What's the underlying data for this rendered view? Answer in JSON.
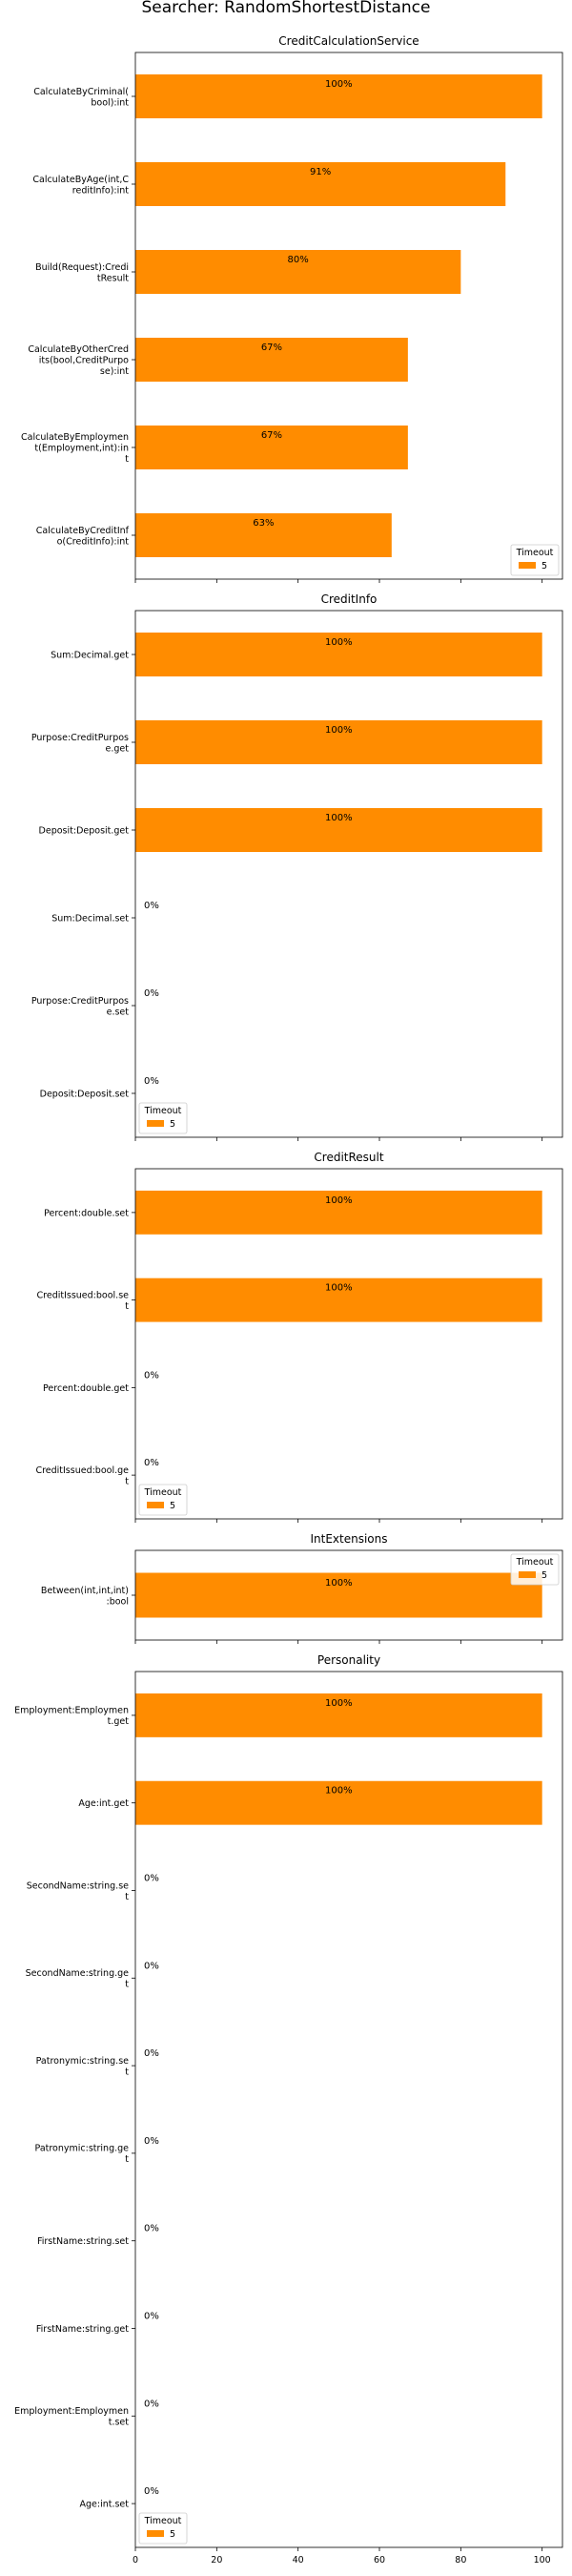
{
  "page_title": "Searcher: RandomShortestDistance",
  "colors": {
    "bar": "#ff8c00",
    "axis": "#000000",
    "background": "#ffffff"
  },
  "chart_data": [
    {
      "type": "bar",
      "orientation": "horizontal",
      "title": "CreditCalculationService",
      "categories": [
        "CalculateByCriminal(bool):int",
        "CalculateByAge(int,CreditInfo):int",
        "Build(Request):CreditResult",
        "CalculateByOtherCredits(bool,CreditPurpose):int",
        "CalculateByEmployment(Employment,int):int",
        "CalculateByCreditInfo(CreditInfo):int"
      ],
      "label_lines": [
        [
          "CalculateByCriminal(",
          "bool):int"
        ],
        [
          "CalculateByAge(int,C",
          "reditInfo):int"
        ],
        [
          "Build(Request):Credi",
          "tResult"
        ],
        [
          "CalculateByOtherCred",
          "its(bool,CreditPurpo",
          "se):int"
        ],
        [
          "CalculateByEmploymen",
          "t(Employment,int):in",
          "t"
        ],
        [
          "CalculateByCreditInf",
          "o(CreditInfo):int"
        ]
      ],
      "series": [
        {
          "name": "5",
          "values": [
            100,
            91,
            80,
            67,
            67,
            63
          ]
        }
      ],
      "value_labels": [
        "100%",
        "91%",
        "80%",
        "67%",
        "67%",
        "63%"
      ],
      "xlim": [
        0,
        105
      ],
      "legend": {
        "title": "Timeout",
        "entries": [
          "5"
        ],
        "position": "lower-right"
      }
    },
    {
      "type": "bar",
      "orientation": "horizontal",
      "title": "CreditInfo",
      "categories": [
        "Sum:Decimal.get",
        "Purpose:CreditPurpose.get",
        "Deposit:Deposit.get",
        "Sum:Decimal.set",
        "Purpose:CreditPurpose.set",
        "Deposit:Deposit.set"
      ],
      "label_lines": [
        [
          "Sum:Decimal.get"
        ],
        [
          "Purpose:CreditPurpos",
          "e.get"
        ],
        [
          "Deposit:Deposit.get"
        ],
        [
          "Sum:Decimal.set"
        ],
        [
          "Purpose:CreditPurpos",
          "e.set"
        ],
        [
          "Deposit:Deposit.set"
        ]
      ],
      "series": [
        {
          "name": "5",
          "values": [
            100,
            100,
            100,
            0,
            0,
            0
          ]
        }
      ],
      "value_labels": [
        "100%",
        "100%",
        "100%",
        "0%",
        "0%",
        "0%"
      ],
      "xlim": [
        0,
        105
      ],
      "legend": {
        "title": "Timeout",
        "entries": [
          "5"
        ],
        "position": "lower-left"
      }
    },
    {
      "type": "bar",
      "orientation": "horizontal",
      "title": "CreditResult",
      "categories": [
        "Percent:double.set",
        "CreditIssued:bool.set",
        "Percent:double.get",
        "CreditIssued:bool.get"
      ],
      "label_lines": [
        [
          "Percent:double.set"
        ],
        [
          "CreditIssued:bool.se",
          "t"
        ],
        [
          "Percent:double.get"
        ],
        [
          "CreditIssued:bool.ge",
          "t"
        ]
      ],
      "series": [
        {
          "name": "5",
          "values": [
            100,
            100,
            0,
            0
          ]
        }
      ],
      "value_labels": [
        "100%",
        "100%",
        "0%",
        "0%"
      ],
      "xlim": [
        0,
        105
      ],
      "legend": {
        "title": "Timeout",
        "entries": [
          "5"
        ],
        "position": "lower-left"
      }
    },
    {
      "type": "bar",
      "orientation": "horizontal",
      "title": "IntExtensions",
      "categories": [
        "Between(int,int,int):bool"
      ],
      "label_lines": [
        [
          "Between(int,int,int)",
          ":bool"
        ]
      ],
      "series": [
        {
          "name": "5",
          "values": [
            100
          ]
        }
      ],
      "value_labels": [
        "100%"
      ],
      "xlim": [
        0,
        105
      ],
      "legend": {
        "title": "Timeout",
        "entries": [
          "5"
        ],
        "position": "upper-right"
      }
    },
    {
      "type": "bar",
      "orientation": "horizontal",
      "title": "Personality",
      "categories": [
        "Employment:Employment.get",
        "Age:int.get",
        "SecondName:string.set",
        "SecondName:string.get",
        "Patronymic:string.set",
        "Patronymic:string.get",
        "FirstName:string.set",
        "FirstName:string.get",
        "Employment:Employment.set",
        "Age:int.set"
      ],
      "label_lines": [
        [
          "Employment:Employmen",
          "t.get"
        ],
        [
          "Age:int.get"
        ],
        [
          "SecondName:string.se",
          "t"
        ],
        [
          "SecondName:string.ge",
          "t"
        ],
        [
          "Patronymic:string.se",
          "t"
        ],
        [
          "Patronymic:string.ge",
          "t"
        ],
        [
          "FirstName:string.set"
        ],
        [
          "FirstName:string.get"
        ],
        [
          "Employment:Employmen",
          "t.set"
        ],
        [
          "Age:int.set"
        ]
      ],
      "series": [
        {
          "name": "5",
          "values": [
            100,
            100,
            0,
            0,
            0,
            0,
            0,
            0,
            0,
            0
          ]
        }
      ],
      "value_labels": [
        "100%",
        "100%",
        "0%",
        "0%",
        "0%",
        "0%",
        "0%",
        "0%",
        "0%",
        "0%"
      ],
      "xlim": [
        0,
        105
      ],
      "xticks": [
        "0",
        "20",
        "40",
        "60",
        "80",
        "100"
      ],
      "legend": {
        "title": "Timeout",
        "entries": [
          "5"
        ],
        "position": "lower-left"
      }
    }
  ]
}
